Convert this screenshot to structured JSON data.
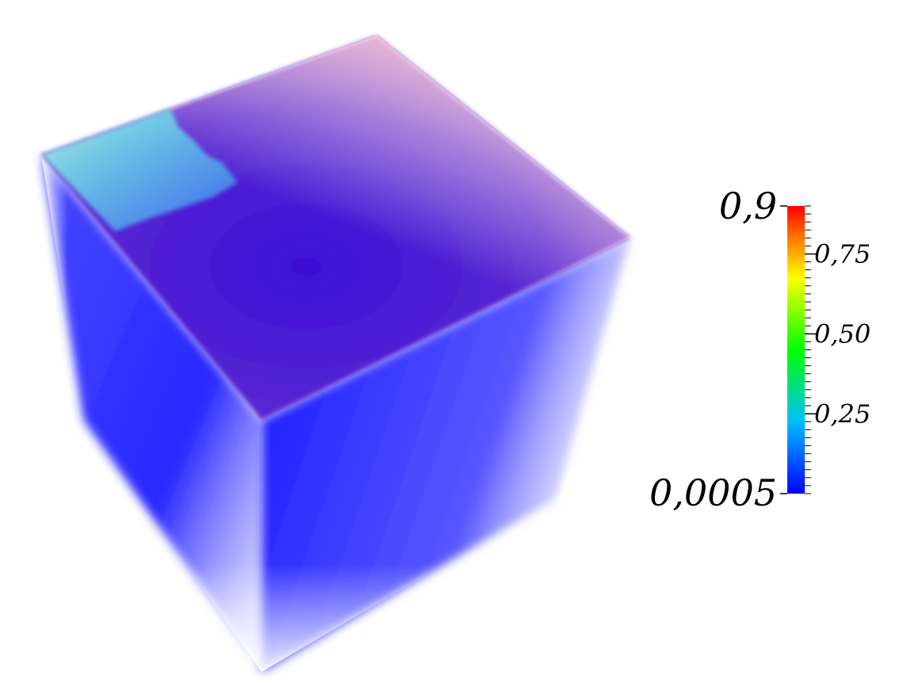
{
  "colorbar": {
    "max_label": "0,9",
    "min_label": "0,0005",
    "range": [
      0.0005,
      0.9
    ],
    "tick_labels": [
      {
        "value": 0.75,
        "label": "0,75"
      },
      {
        "value": 0.5,
        "label": "0,50"
      },
      {
        "value": 0.25,
        "label": "0,25"
      }
    ],
    "colormap": [
      "#0000ff",
      "#00bfff",
      "#00ff7f",
      "#ffff00",
      "#ff7f00",
      "#ff0000"
    ]
  },
  "volume": {
    "base_color": "#1a1aff",
    "top_face_color": "#4a1fd6",
    "highlight_color": "#7fffd4",
    "edge_glow_color": "#ffc8c8"
  }
}
